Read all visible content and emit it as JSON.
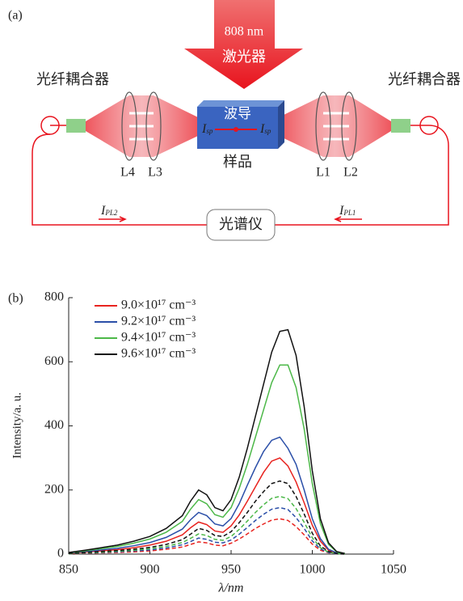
{
  "diagram": {
    "label": "(a)",
    "laser": [
      "808 nm",
      "激光器"
    ],
    "couplers": [
      "光纤耦合器",
      "光纤耦合器"
    ],
    "waveguide": "波导",
    "sample": "样品",
    "lenses": [
      "L4",
      "L3",
      "L1",
      "L2"
    ],
    "signals": [
      {
        "main": "I",
        "sub": "sp"
      },
      {
        "main": "I",
        "sub": "sp"
      }
    ],
    "outputs": [
      {
        "main": "I",
        "sub": "PL2"
      },
      {
        "main": "I",
        "sub": "PL1"
      }
    ],
    "spectrometer": "光谱仪"
  },
  "chart_data": {
    "type": "line",
    "panel_label": "(b)",
    "x_label": "λ/nm",
    "y_label": "Intensity/a. u.",
    "x": [
      850,
      860,
      870,
      880,
      890,
      900,
      910,
      920,
      925,
      930,
      935,
      940,
      945,
      950,
      955,
      960,
      965,
      970,
      975,
      980,
      985,
      990,
      995,
      1000,
      1005,
      1010,
      1015,
      1020
    ],
    "xlim": [
      850,
      1050
    ],
    "xticks": [
      850,
      900,
      950,
      1000,
      1050
    ],
    "ylim": [
      0,
      800
    ],
    "yticks": [
      0,
      200,
      400,
      600,
      800
    ],
    "series": [
      {
        "name": "9.0×10¹⁷ cm⁻³",
        "color": "#e8231f",
        "values": [
          2,
          6,
          10,
          14,
          20,
          28,
          40,
          60,
          82,
          100,
          92,
          72,
          68,
          88,
          122,
          165,
          210,
          255,
          290,
          300,
          275,
          225,
          160,
          90,
          40,
          12,
          3,
          1
        ]
      },
      {
        "name": "9.2×10¹⁷ cm⁻³",
        "color": "#2b4fa8",
        "values": [
          3,
          8,
          13,
          18,
          26,
          36,
          52,
          78,
          107,
          130,
          120,
          94,
          88,
          111,
          157,
          215,
          270,
          320,
          355,
          365,
          330,
          280,
          200,
          110,
          48,
          15,
          4,
          1
        ]
      },
      {
        "name": "9.4×10¹⁷ cm⁻³",
        "color": "#4cb848",
        "values": [
          4,
          10,
          17,
          24,
          34,
          47,
          68,
          102,
          140,
          170,
          157,
          123,
          115,
          145,
          205,
          280,
          365,
          450,
          535,
          590,
          590,
          520,
          390,
          220,
          95,
          30,
          7,
          2
        ]
      },
      {
        "name": "9.6×10¹⁷ cm⁻³",
        "color": "#111111",
        "values": [
          5,
          12,
          20,
          28,
          40,
          55,
          80,
          120,
          165,
          200,
          185,
          145,
          135,
          170,
          240,
          330,
          430,
          530,
          630,
          695,
          700,
          620,
          460,
          260,
          110,
          35,
          8,
          2
        ]
      },
      {
        "color": "#e8231f",
        "dash": true,
        "values": [
          1,
          2,
          4,
          5,
          7,
          10,
          15,
          22,
          30,
          38,
          35,
          28,
          26,
          34,
          47,
          63,
          80,
          94,
          106,
          110,
          105,
          86,
          60,
          31,
          12,
          4,
          1,
          0
        ]
      },
      {
        "color": "#2b4fa8",
        "dash": true,
        "values": [
          1,
          3,
          5,
          7,
          10,
          13,
          19,
          29,
          39,
          50,
          46,
          37,
          35,
          44,
          62,
          83,
          105,
          124,
          140,
          145,
          139,
          114,
          80,
          41,
          16,
          5,
          1,
          0
        ]
      },
      {
        "color": "#4cb848",
        "dash": true,
        "values": [
          1,
          4,
          6,
          9,
          12,
          17,
          24,
          36,
          49,
          63,
          58,
          46,
          43,
          55,
          77,
          103,
          130,
          154,
          174,
          180,
          173,
          142,
          99,
          51,
          20,
          6,
          2,
          0
        ]
      },
      {
        "color": "#111111",
        "dash": true,
        "values": [
          2,
          5,
          8,
          11,
          15,
          21,
          30,
          45,
          62,
          80,
          74,
          58,
          55,
          70,
          98,
          130,
          165,
          195,
          220,
          228,
          220,
          180,
          125,
          65,
          25,
          8,
          2,
          0
        ]
      }
    ]
  }
}
